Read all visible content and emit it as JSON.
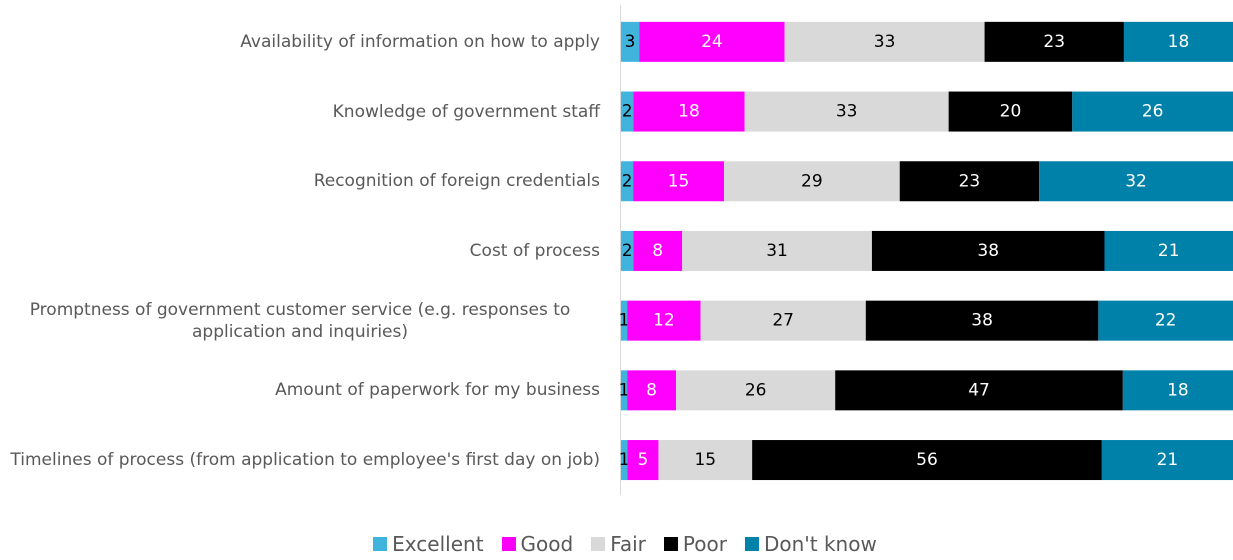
{
  "chart_data": {
    "type": "bar",
    "orientation": "horizontal",
    "stacking": "percent",
    "categories": [
      "Availability of information on how to apply",
      "Knowledge of government staff",
      "Recognition of foreign credentials",
      "Cost of process",
      "Promptness of government customer service (e.g. responses to application and inquiries)",
      "Amount of paperwork for my business",
      "Timelines of process (from application to employee's first day on job)"
    ],
    "series": [
      {
        "name": "Excellent",
        "color": "#41b4de",
        "label_color": "#000000",
        "values": [
          3,
          2,
          2,
          2,
          1,
          1,
          1
        ]
      },
      {
        "name": "Good",
        "color": "#ff00ff",
        "label_color": "#ffffff",
        "values": [
          24,
          18,
          15,
          8,
          12,
          8,
          5
        ]
      },
      {
        "name": "Fair",
        "color": "#d9d9d9",
        "label_color": "#000000",
        "values": [
          33,
          33,
          29,
          31,
          27,
          26,
          15
        ]
      },
      {
        "name": "Poor",
        "color": "#000000",
        "label_color": "#ffffff",
        "values": [
          23,
          20,
          23,
          38,
          38,
          47,
          56
        ]
      },
      {
        "name": "Don't know",
        "color": "#0081a9",
        "label_color": "#ffffff",
        "values": [
          18,
          26,
          32,
          21,
          22,
          18,
          21
        ]
      }
    ],
    "legend": "bottom"
  }
}
